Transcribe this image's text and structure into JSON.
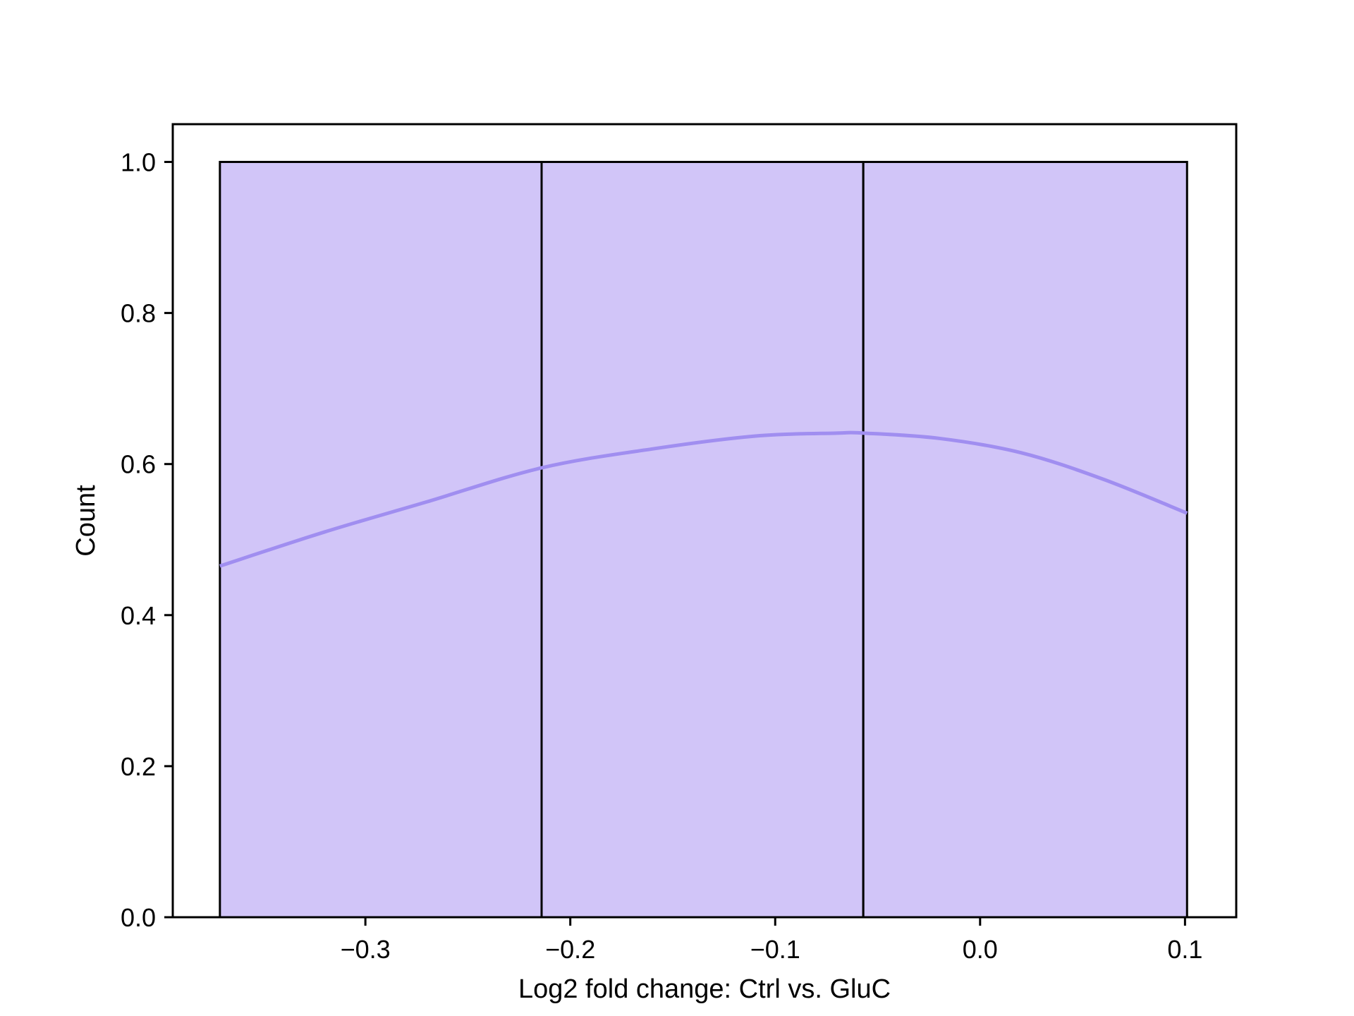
{
  "chart_data": {
    "type": "bar",
    "title": "",
    "xlabel": "Log2 fold change: Ctrl vs. GluC",
    "ylabel": "Count",
    "xlim": [
      -0.394,
      0.125
    ],
    "ylim": [
      0.0,
      1.05
    ],
    "x_ticks": [
      -0.3,
      -0.2,
      -0.1,
      0.0,
      0.1
    ],
    "x_tick_labels": [
      "−0.3",
      "−0.2",
      "−0.1",
      "0.0",
      "0.1"
    ],
    "y_ticks": [
      0.0,
      0.2,
      0.4,
      0.6,
      0.8,
      1.0
    ],
    "y_tick_labels": [
      "0.0",
      "0.2",
      "0.4",
      "0.6",
      "0.8",
      "1.0"
    ],
    "bins": [
      {
        "x_start": -0.371,
        "x_end": -0.214,
        "count": 1
      },
      {
        "x_start": -0.214,
        "x_end": -0.057,
        "count": 1
      },
      {
        "x_start": -0.057,
        "x_end": 0.101,
        "count": 1
      }
    ],
    "kde": {
      "x": [
        -0.371,
        -0.32,
        -0.27,
        -0.214,
        -0.16,
        -0.11,
        -0.07,
        -0.057,
        -0.02,
        0.02,
        0.06,
        0.101
      ],
      "y": [
        0.465,
        0.51,
        0.55,
        0.595,
        0.62,
        0.637,
        0.641,
        0.641,
        0.634,
        0.615,
        0.58,
        0.535
      ]
    },
    "grid": false,
    "legend": "none",
    "colors": {
      "bar_fill": "#d1c5f8",
      "bar_edge": "#000000",
      "kde_line": "#a08ef0",
      "axis": "#000000"
    }
  }
}
